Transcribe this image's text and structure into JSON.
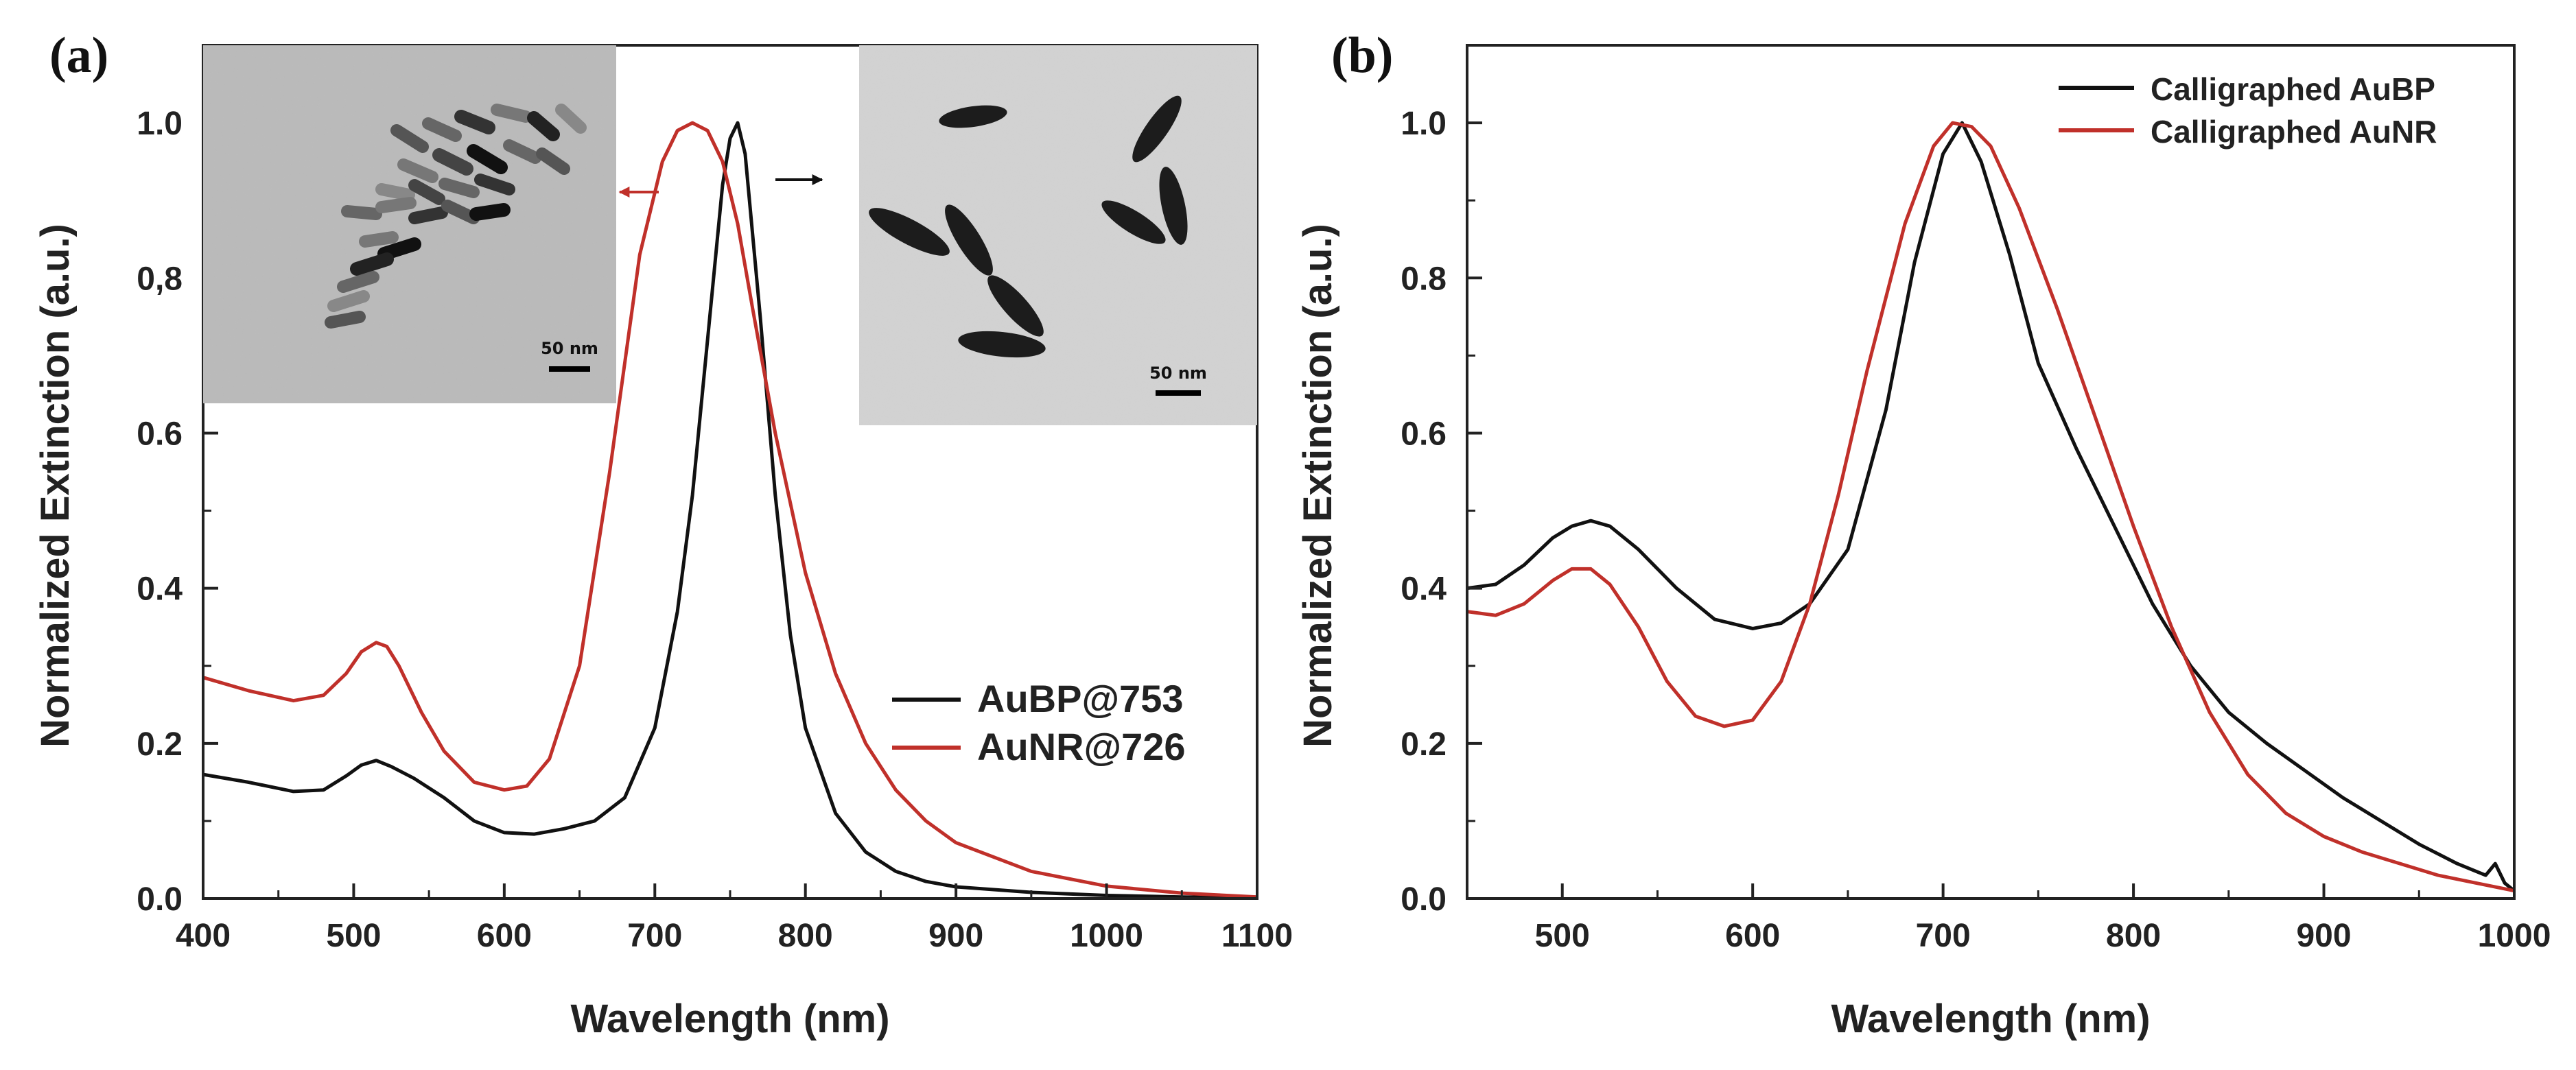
{
  "chart_data": [
    {
      "panel_label": "(a)",
      "type": "line",
      "xlabel": "Wavelength (nm)",
      "ylabel": "Normalized Extinction (a.u.)",
      "xlim": [
        400,
        1100
      ],
      "ylim": [
        0,
        1.1
      ],
      "xticks": [
        400,
        500,
        600,
        700,
        800,
        900,
        1000,
        1100
      ],
      "yticks": [
        0.0,
        0.2,
        0.4,
        0.6,
        0.8,
        1.0
      ],
      "ytick_labels": [
        "0.0",
        "0.2",
        "0.4",
        "0.6",
        "0,8",
        "1.0"
      ],
      "legend_position": "lower-right",
      "series": [
        {
          "name": "AuBP@753",
          "color": "#111111",
          "x": [
            400,
            430,
            460,
            480,
            495,
            505,
            515,
            525,
            540,
            560,
            580,
            600,
            620,
            640,
            660,
            680,
            700,
            715,
            725,
            735,
            745,
            750,
            755,
            760,
            770,
            780,
            790,
            800,
            820,
            840,
            860,
            880,
            900,
            950,
            1000,
            1050,
            1100
          ],
          "y": [
            0.16,
            0.15,
            0.138,
            0.14,
            0.158,
            0.172,
            0.178,
            0.17,
            0.155,
            0.13,
            0.1,
            0.085,
            0.083,
            0.09,
            0.1,
            0.13,
            0.22,
            0.37,
            0.52,
            0.72,
            0.92,
            0.98,
            1.0,
            0.96,
            0.75,
            0.52,
            0.34,
            0.22,
            0.11,
            0.06,
            0.035,
            0.022,
            0.015,
            0.008,
            0.004,
            0.002,
            0.001
          ]
        },
        {
          "name": "AuNR@726",
          "color": "#c0302a",
          "x": [
            400,
            430,
            460,
            480,
            495,
            505,
            515,
            522,
            530,
            545,
            560,
            580,
            600,
            615,
            630,
            650,
            670,
            690,
            705,
            715,
            725,
            735,
            745,
            755,
            765,
            780,
            800,
            820,
            840,
            860,
            880,
            900,
            950,
            1000,
            1050,
            1100
          ],
          "y": [
            0.285,
            0.268,
            0.255,
            0.262,
            0.29,
            0.318,
            0.33,
            0.325,
            0.3,
            0.24,
            0.19,
            0.15,
            0.14,
            0.145,
            0.18,
            0.3,
            0.55,
            0.83,
            0.95,
            0.99,
            1.0,
            0.99,
            0.95,
            0.87,
            0.76,
            0.6,
            0.42,
            0.29,
            0.2,
            0.14,
            0.1,
            0.072,
            0.035,
            0.016,
            0.007,
            0.002
          ]
        }
      ],
      "insets": [
        {
          "scale_bar_label": "50 nm"
        },
        {
          "scale_bar_label": "50 nm"
        }
      ]
    },
    {
      "panel_label": "(b)",
      "type": "line",
      "xlabel": "Wavelength (nm)",
      "ylabel": "Normalized Extinction (a.u.)",
      "xlim": [
        450,
        1000
      ],
      "ylim": [
        0,
        1.1
      ],
      "xticks": [
        500,
        600,
        700,
        800,
        900,
        1000
      ],
      "yticks": [
        0.0,
        0.2,
        0.4,
        0.6,
        0.8,
        1.0
      ],
      "ytick_labels": [
        "0.0",
        "0.2",
        "0.4",
        "0.6",
        "0.8",
        "1.0"
      ],
      "legend_position": "top-right",
      "series": [
        {
          "name": "Calligraphed AuBP",
          "color": "#111111",
          "x": [
            450,
            465,
            480,
            495,
            505,
            515,
            525,
            540,
            560,
            580,
            600,
            615,
            630,
            650,
            670,
            685,
            700,
            710,
            720,
            735,
            750,
            770,
            790,
            810,
            830,
            850,
            870,
            890,
            910,
            930,
            950,
            970,
            985,
            990,
            995,
            1000
          ],
          "y": [
            0.4,
            0.405,
            0.43,
            0.465,
            0.48,
            0.487,
            0.48,
            0.45,
            0.4,
            0.36,
            0.348,
            0.355,
            0.38,
            0.45,
            0.63,
            0.82,
            0.96,
            1.0,
            0.95,
            0.83,
            0.69,
            0.58,
            0.48,
            0.38,
            0.3,
            0.24,
            0.2,
            0.165,
            0.13,
            0.1,
            0.07,
            0.045,
            0.03,
            0.045,
            0.02,
            0.01
          ]
        },
        {
          "name": "Calligraphed AuNR",
          "color": "#c0302a",
          "x": [
            450,
            465,
            480,
            495,
            505,
            515,
            525,
            540,
            555,
            570,
            585,
            600,
            615,
            630,
            645,
            660,
            680,
            695,
            705,
            715,
            725,
            740,
            760,
            780,
            800,
            820,
            840,
            860,
            880,
            900,
            920,
            940,
            960,
            980,
            1000
          ],
          "y": [
            0.37,
            0.365,
            0.38,
            0.41,
            0.425,
            0.425,
            0.405,
            0.35,
            0.28,
            0.235,
            0.222,
            0.23,
            0.28,
            0.38,
            0.52,
            0.68,
            0.87,
            0.97,
            1.0,
            0.995,
            0.97,
            0.89,
            0.76,
            0.62,
            0.48,
            0.35,
            0.24,
            0.16,
            0.11,
            0.08,
            0.06,
            0.045,
            0.03,
            0.02,
            0.01
          ]
        }
      ]
    }
  ]
}
